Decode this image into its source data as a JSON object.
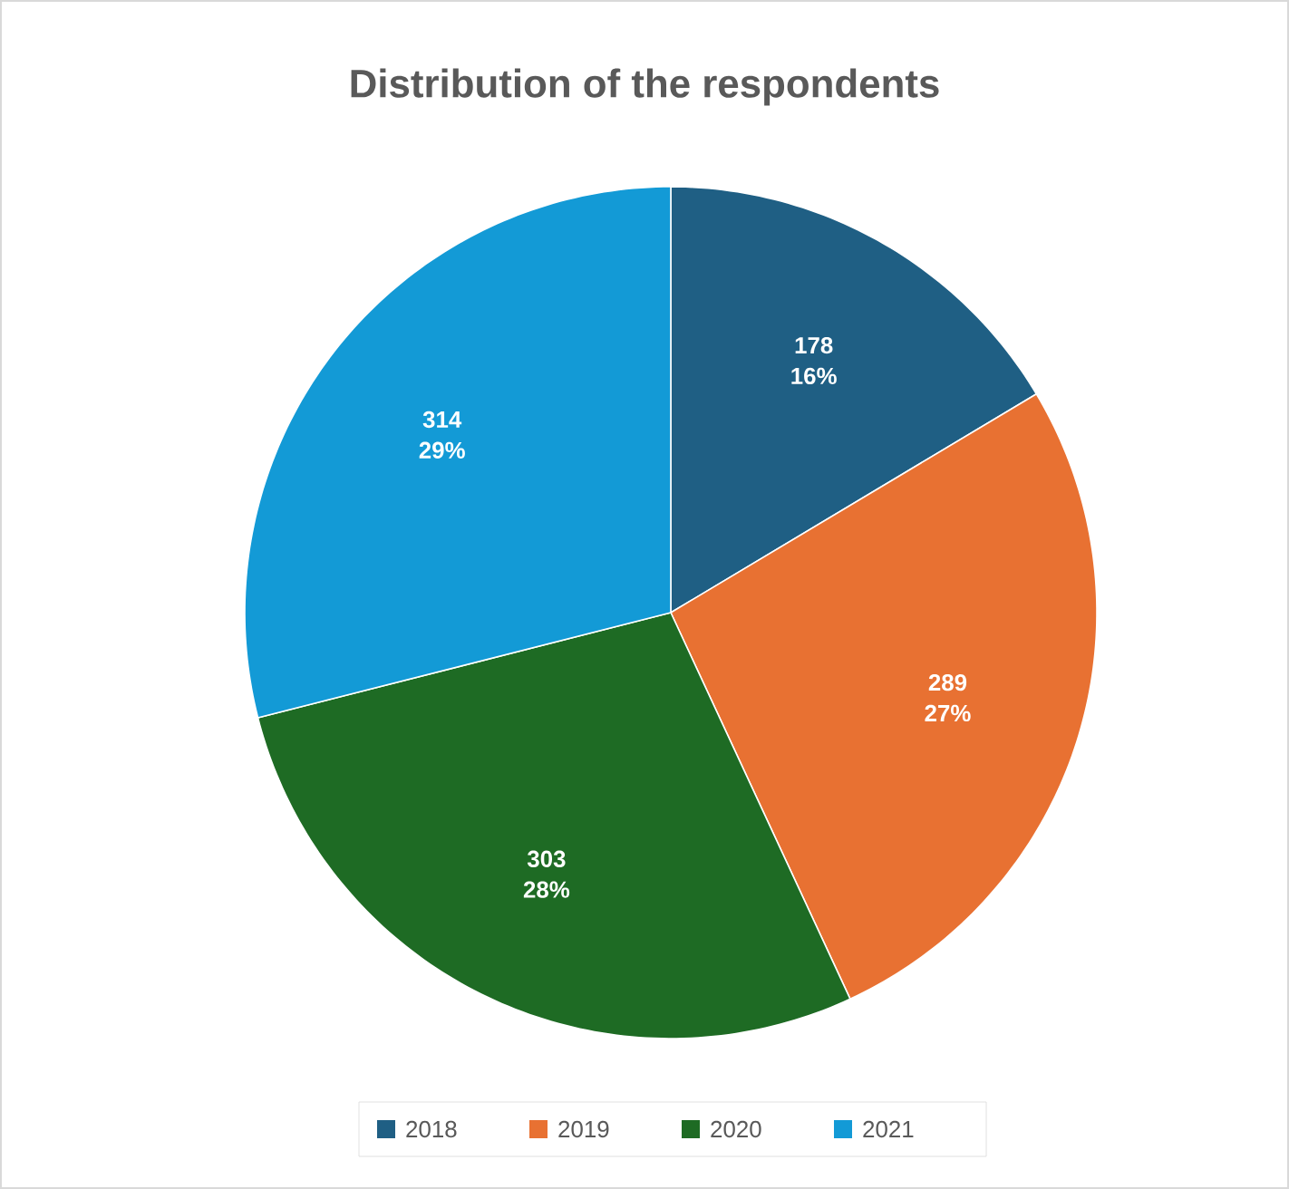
{
  "chart_data": {
    "type": "pie",
    "title": "Distribution of the respondents",
    "categories": [
      "2018",
      "2019",
      "2020",
      "2021"
    ],
    "values": [
      178,
      289,
      303,
      314
    ],
    "colors": [
      "#1f5f84",
      "#e87132",
      "#1e6b24",
      "#139ad6"
    ],
    "value_labels": [
      "178 16%",
      "289 27%",
      "303 28%",
      "314 29%"
    ],
    "legend": "bottom"
  }
}
